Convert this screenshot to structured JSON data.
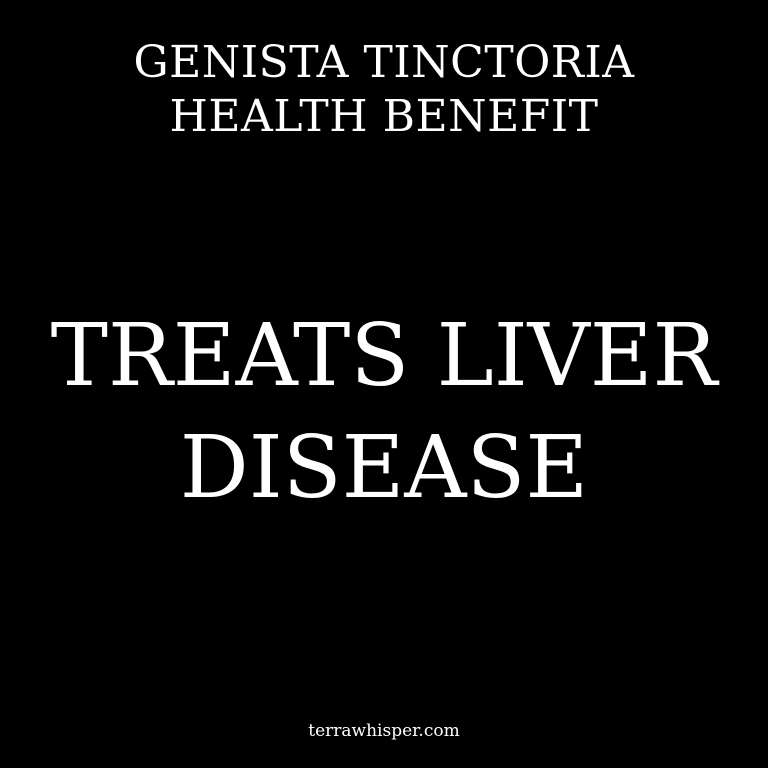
{
  "colors": {
    "background": "#000000",
    "text": "#ffffff"
  },
  "heading": {
    "line1": "GENISTA TINCTORIA",
    "line2": "HEALTH BENEFIT"
  },
  "claim": {
    "line1": "TREATS LIVER",
    "line2": "DISEASE"
  },
  "footer": {
    "site": "terrawhisper.com"
  }
}
